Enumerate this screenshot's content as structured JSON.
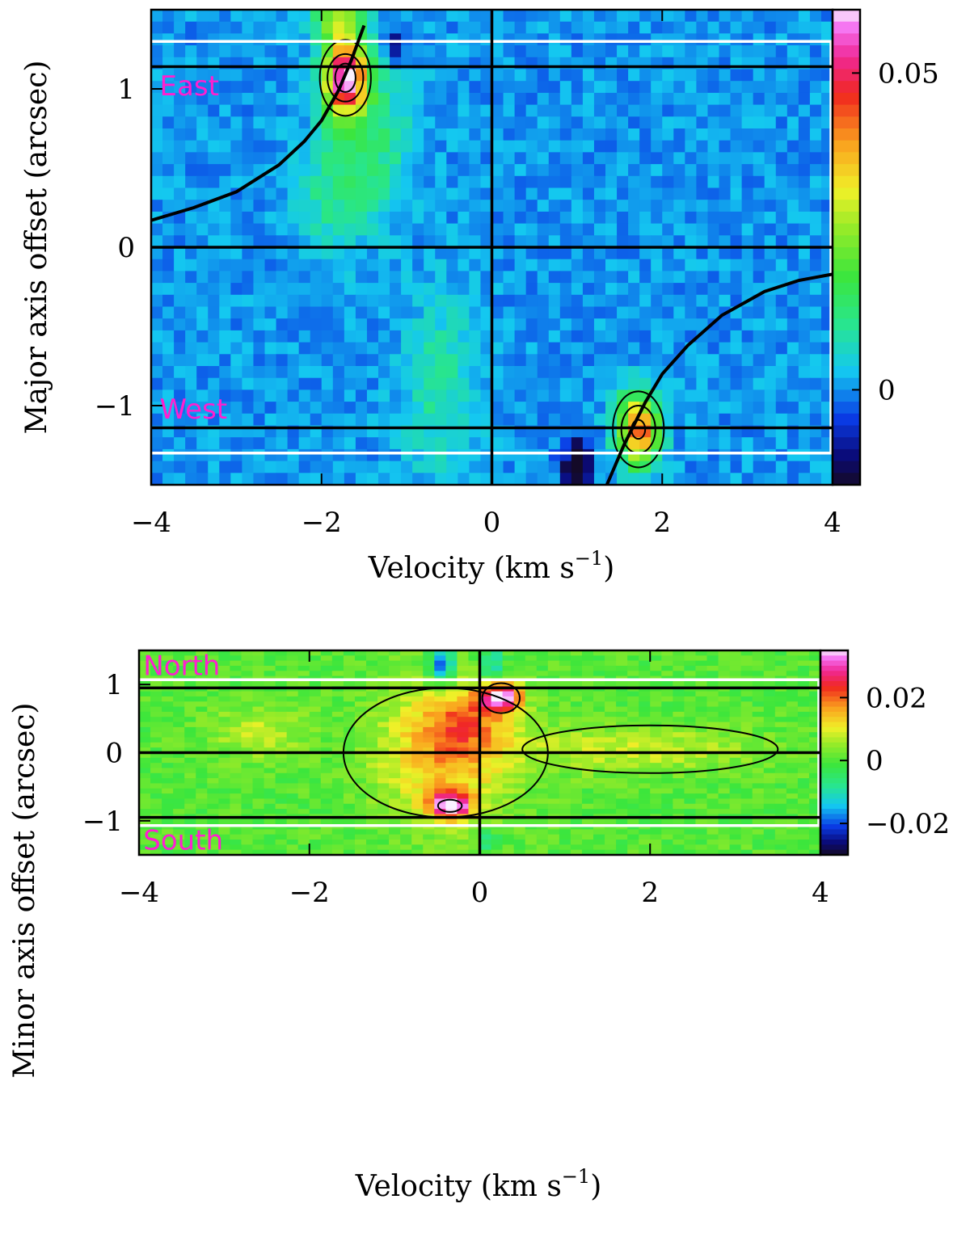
{
  "chart_data": [
    {
      "type": "heatmap",
      "name": "major-axis-pv",
      "xlabel": "Velocity (km s",
      "xlabel_sup": "−1",
      "xlabel_close": ")",
      "ylabel": "Major axis offset (arcsec)",
      "xlim": [
        -4,
        4
      ],
      "ylim": [
        -1.5,
        1.5
      ],
      "xticks": [
        {
          "v": -4,
          "label": "−4"
        },
        {
          "v": -2,
          "label": "−2"
        },
        {
          "v": 0,
          "label": "0"
        },
        {
          "v": 2,
          "label": "2"
        },
        {
          "v": 4,
          "label": "4"
        }
      ],
      "yticks": [
        {
          "v": -1,
          "label": "−1"
        },
        {
          "v": 0,
          "label": "0"
        },
        {
          "v": 1,
          "label": "1"
        }
      ],
      "colorbar": {
        "min": -0.015,
        "max": 0.06,
        "ticks": [
          {
            "v": 0.05,
            "label": "0.05"
          },
          {
            "v": 0,
            "label": "0"
          }
        ]
      },
      "region_labels": [
        {
          "text": "East",
          "x": -3.9,
          "y": 1.02
        },
        {
          "text": "West",
          "x": -3.9,
          "y": -1.02
        }
      ],
      "hlines_black": [
        1.14,
        0,
        -1.14
      ],
      "vlines_black": [
        0
      ],
      "box_white": [
        -1.3,
        1.3
      ],
      "curves": [
        {
          "x": [
            -4.0,
            -3.5,
            -3.0,
            -2.5,
            -2.2,
            -2.0,
            -1.8,
            -1.65,
            -1.5
          ],
          "y": [
            0.17,
            0.25,
            0.35,
            0.52,
            0.67,
            0.8,
            0.99,
            1.18,
            1.4
          ]
        },
        {
          "x": [
            1.35,
            1.55,
            1.8,
            2.0,
            2.3,
            2.7,
            3.2,
            3.6,
            4.0
          ],
          "y": [
            -1.5,
            -1.25,
            -0.98,
            -0.8,
            -0.62,
            -0.43,
            -0.28,
            -0.21,
            -0.17
          ]
        }
      ],
      "blobs": [
        {
          "x": -1.72,
          "y": 1.07,
          "sx": 0.17,
          "sy": 0.16,
          "amp": 0.058
        },
        {
          "x": -1.82,
          "y": 1.45,
          "sx": 0.2,
          "sy": 0.12,
          "amp": 0.025
        },
        {
          "x": -1.45,
          "y": 0.7,
          "sx": 0.35,
          "sy": 0.35,
          "amp": 0.012
        },
        {
          "x": 1.72,
          "y": -1.15,
          "sx": 0.17,
          "sy": 0.16,
          "amp": 0.045
        },
        {
          "x": 1.0,
          "y": -1.38,
          "sx": 0.12,
          "sy": 0.12,
          "amp": -0.02
        },
        {
          "x": -1.15,
          "y": 1.28,
          "sx": 0.08,
          "sy": 0.08,
          "amp": -0.012
        },
        {
          "x": -0.6,
          "y": -0.9,
          "sx": 0.3,
          "sy": 0.4,
          "amp": 0.009
        },
        {
          "x": -1.9,
          "y": 0.3,
          "sx": 0.3,
          "sy": 0.25,
          "amp": 0.008
        }
      ],
      "contours": [
        {
          "x": -1.72,
          "y": 1.07,
          "rx": 0.3,
          "ry": 0.24
        },
        {
          "x": -1.72,
          "y": 1.07,
          "rx": 0.21,
          "ry": 0.15
        },
        {
          "x": -1.72,
          "y": 1.07,
          "rx": 0.12,
          "ry": 0.09
        },
        {
          "x": 1.72,
          "y": -1.15,
          "rx": 0.3,
          "ry": 0.24
        },
        {
          "x": 1.72,
          "y": -1.15,
          "rx": 0.2,
          "ry": 0.15
        },
        {
          "x": 1.72,
          "y": -1.15,
          "rx": 0.08,
          "ry": 0.06
        }
      ]
    },
    {
      "type": "heatmap",
      "name": "minor-axis-pv",
      "xlabel": "Velocity (km s",
      "xlabel_sup": "−1",
      "xlabel_close": ")",
      "ylabel": "Minor axis offset (arcsec)",
      "xlim": [
        -4,
        4
      ],
      "ylim": [
        -1.5,
        1.5
      ],
      "xticks": [
        {
          "v": -4,
          "label": "−4"
        },
        {
          "v": -2,
          "label": "−2"
        },
        {
          "v": 0,
          "label": "0"
        },
        {
          "v": 2,
          "label": "2"
        },
        {
          "v": 4,
          "label": "4"
        }
      ],
      "yticks": [
        {
          "v": -1,
          "label": "−1"
        },
        {
          "v": 0,
          "label": "0"
        },
        {
          "v": 1,
          "label": "1"
        }
      ],
      "colorbar": {
        "min": -0.03,
        "max": 0.035,
        "ticks": [
          {
            "v": 0.02,
            "label": "0.02"
          },
          {
            "v": 0,
            "label": "0"
          },
          {
            "v": -0.02,
            "label": "−0.02"
          }
        ]
      },
      "region_labels": [
        {
          "text": "North",
          "x": -3.95,
          "y": 1.28
        },
        {
          "text": "South",
          "x": -3.95,
          "y": -1.28
        }
      ],
      "hlines_black": [
        0.95,
        0,
        -0.95
      ],
      "vlines_black": [
        0
      ],
      "box_white": [
        -1.07,
        1.07
      ],
      "curves": [],
      "blobs": [
        {
          "x": 0.25,
          "y": 0.82,
          "sx": 0.16,
          "sy": 0.15,
          "amp": 0.034
        },
        {
          "x": -0.35,
          "y": -0.78,
          "sx": 0.17,
          "sy": 0.13,
          "amp": 0.032
        },
        {
          "x": -0.4,
          "y": 0.0,
          "sx": 0.55,
          "sy": 0.7,
          "amp": 0.016
        },
        {
          "x": -0.15,
          "y": 0.5,
          "sx": 0.3,
          "sy": 0.3,
          "amp": 0.01
        },
        {
          "x": 1.8,
          "y": 0.05,
          "sx": 1.0,
          "sy": 0.25,
          "amp": 0.008
        },
        {
          "x": -0.45,
          "y": 1.3,
          "sx": 0.1,
          "sy": 0.22,
          "amp": -0.022
        },
        {
          "x": 0.15,
          "y": 1.25,
          "sx": 0.1,
          "sy": 0.2,
          "amp": -0.014
        },
        {
          "x": 0.1,
          "y": -1.3,
          "sx": 0.08,
          "sy": 0.15,
          "amp": -0.01
        },
        {
          "x": -2.6,
          "y": 0.3,
          "sx": 0.4,
          "sy": 0.3,
          "amp": 0.007
        }
      ],
      "contours": [
        {
          "x": 0.25,
          "y": 0.8,
          "rx": 0.22,
          "ry": 0.22
        },
        {
          "x": -0.35,
          "y": -0.78,
          "rx": 0.14,
          "ry": 0.09
        },
        {
          "x": -0.4,
          "y": 0.0,
          "rx": 1.2,
          "ry": 0.95
        },
        {
          "x": 2.0,
          "y": 0.05,
          "rx": 1.5,
          "ry": 0.35
        }
      ]
    }
  ]
}
